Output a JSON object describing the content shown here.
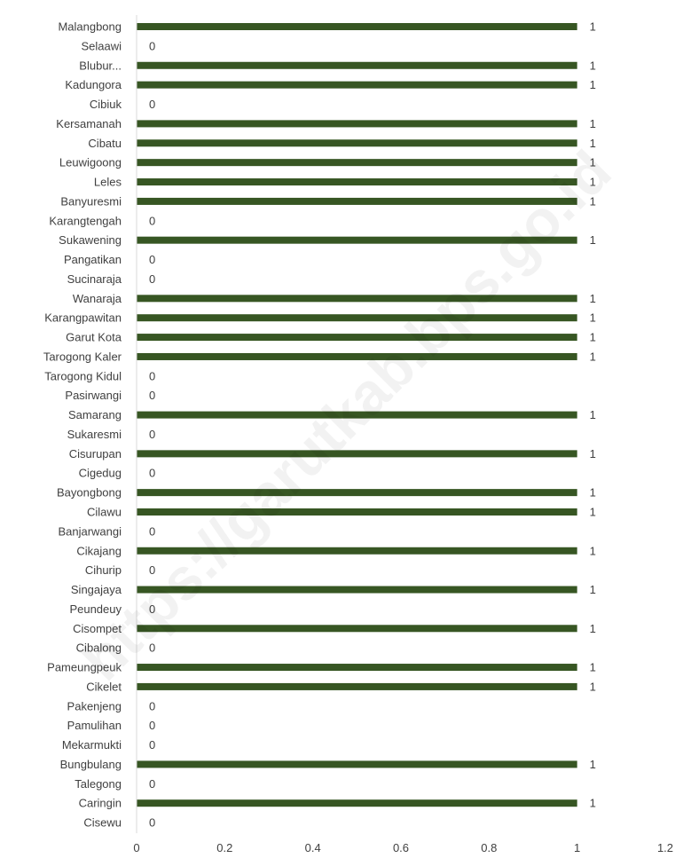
{
  "chart_data": {
    "type": "bar",
    "orientation": "horizontal",
    "categories": [
      "Malangbong",
      "Selaawi",
      "Blubur...",
      "Kadungora",
      "Cibiuk",
      "Kersamanah",
      "Cibatu",
      "Leuwigoong",
      "Leles",
      "Banyuresmi",
      "Karangtengah",
      "Sukawening",
      "Pangatikan",
      "Sucinaraja",
      "Wanaraja",
      "Karangpawitan",
      "Garut Kota",
      "Tarogong Kaler",
      "Tarogong Kidul",
      "Pasirwangi",
      "Samarang",
      "Sukaresmi",
      "Cisurupan",
      "Cigedug",
      "Bayongbong",
      "Cilawu",
      "Banjarwangi",
      "Cikajang",
      "Cihurip",
      "Singajaya",
      "Peundeuy",
      "Cisompet",
      "Cibalong",
      "Pameungpeuk",
      "Cikelet",
      "Pakenjeng",
      "Pamulihan",
      "Mekarmukti",
      "Bungbulang",
      "Talegong",
      "Caringin",
      "Cisewu"
    ],
    "values": [
      1,
      0,
      1,
      1,
      0,
      1,
      1,
      1,
      1,
      1,
      0,
      1,
      0,
      0,
      1,
      1,
      1,
      1,
      0,
      0,
      1,
      0,
      1,
      0,
      1,
      1,
      0,
      1,
      0,
      1,
      0,
      1,
      0,
      1,
      1,
      0,
      0,
      0,
      1,
      0,
      1,
      0
    ],
    "xlim": [
      0,
      1.2
    ],
    "xticks": [
      "0",
      "0.2",
      "0.4",
      "0.6",
      "0.8",
      "1",
      "1.2"
    ],
    "bar_color": "#375623",
    "axis_color": "#d9d9d9",
    "grid": false,
    "legend": "none",
    "data_labels": true
  },
  "watermark": "https://garutkab.bps.go.id"
}
